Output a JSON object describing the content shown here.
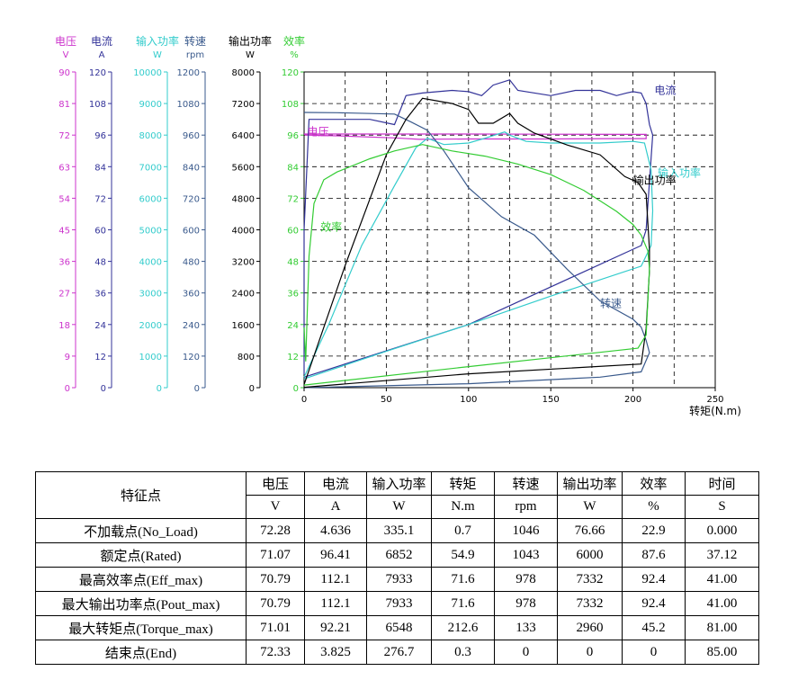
{
  "chart_data": {
    "type": "line",
    "x_axis": {
      "label": "转矩(N.m)",
      "min": 0,
      "max": 250,
      "ticks": [
        0,
        50,
        100,
        150,
        200,
        250
      ]
    },
    "y_axes": [
      {
        "key": "voltage",
        "name": "电压",
        "unit": "V",
        "color": "#cc33cc",
        "min": 0,
        "max": 90,
        "ticks": [
          0,
          9,
          18,
          27,
          36,
          45,
          54,
          63,
          72,
          81,
          90
        ]
      },
      {
        "key": "current",
        "name": "电流",
        "unit": "A",
        "color": "#333399",
        "min": 0,
        "max": 120,
        "ticks": [
          0,
          12,
          24,
          36,
          48,
          60,
          72,
          84,
          96,
          108,
          120
        ]
      },
      {
        "key": "input_power",
        "name": "输入功率",
        "unit": "W",
        "color": "#33cccc",
        "min": 0,
        "max": 10000,
        "ticks": [
          0,
          1000,
          2000,
          3000,
          4000,
          5000,
          6000,
          7000,
          8000,
          9000,
          10000
        ]
      },
      {
        "key": "speed",
        "name": "转速",
        "unit": "rpm",
        "color": "#3a5a8c",
        "min": 0,
        "max": 1200,
        "ticks": [
          0,
          120,
          240,
          360,
          480,
          600,
          720,
          840,
          960,
          1080,
          1200
        ]
      },
      {
        "key": "output_power",
        "name": "输出功率",
        "unit": "W",
        "color": "#000000",
        "min": 0,
        "max": 8000,
        "ticks": [
          0,
          800,
          1600,
          2400,
          3200,
          4000,
          4800,
          5600,
          6400,
          7200,
          8000
        ]
      },
      {
        "key": "efficiency",
        "name": "效率",
        "unit": "%",
        "color": "#33cc33",
        "min": 0,
        "max": 120,
        "ticks": [
          0,
          12,
          24,
          36,
          48,
          60,
          72,
          84,
          96,
          108,
          120
        ]
      }
    ],
    "grid": true,
    "series": [
      {
        "name": "电压",
        "axis": "voltage",
        "color": "#cc33cc",
        "points": [
          [
            0,
            72.3
          ],
          [
            1,
            72.0
          ],
          [
            20,
            71.8
          ],
          [
            55,
            71.2
          ],
          [
            70,
            70.8
          ],
          [
            100,
            70.9
          ],
          [
            150,
            70.9
          ],
          [
            190,
            71.0
          ],
          [
            208,
            71.0
          ],
          [
            208,
            72.2
          ],
          [
            150,
            72.25
          ],
          [
            100,
            72.3
          ],
          [
            50,
            72.3
          ],
          [
            0,
            72.3
          ]
        ]
      },
      {
        "name": "电流",
        "axis": "current",
        "color": "#333399",
        "points": [
          [
            0,
            5
          ],
          [
            0,
            60
          ],
          [
            3,
            102
          ],
          [
            40,
            102
          ],
          [
            55,
            100
          ],
          [
            62,
            111
          ],
          [
            72,
            112
          ],
          [
            90,
            113
          ],
          [
            100,
            112.5
          ],
          [
            108,
            111
          ],
          [
            115,
            115
          ],
          [
            125,
            117
          ],
          [
            130,
            113
          ],
          [
            150,
            111
          ],
          [
            165,
            113
          ],
          [
            180,
            113
          ],
          [
            190,
            111
          ],
          [
            196,
            112
          ],
          [
            200,
            112.5
          ],
          [
            205,
            112
          ],
          [
            208,
            108
          ],
          [
            210,
            100
          ],
          [
            212,
            96
          ],
          [
            208,
            60
          ],
          [
            205,
            54
          ],
          [
            100,
            24
          ],
          [
            0,
            4
          ]
        ]
      },
      {
        "name": "输入功率",
        "axis": "input_power",
        "color": "#33cccc",
        "points": [
          [
            0,
            335
          ],
          [
            15,
            2000
          ],
          [
            35,
            4500
          ],
          [
            55,
            6400
          ],
          [
            68,
            7600
          ],
          [
            75,
            7900
          ],
          [
            85,
            7700
          ],
          [
            100,
            7750
          ],
          [
            110,
            7900
          ],
          [
            122,
            8100
          ],
          [
            125,
            8000
          ],
          [
            135,
            7800
          ],
          [
            150,
            7750
          ],
          [
            165,
            7750
          ],
          [
            180,
            7750
          ],
          [
            200,
            7800
          ],
          [
            207,
            7750
          ],
          [
            211,
            6900
          ],
          [
            212,
            5600
          ],
          [
            211,
            4500
          ],
          [
            205,
            3850
          ],
          [
            150,
            2900
          ],
          [
            100,
            2000
          ],
          [
            50,
            1150
          ],
          [
            0,
            280
          ]
        ]
      },
      {
        "name": "转速",
        "axis": "speed",
        "color": "#3a5a8c",
        "points": [
          [
            0,
            1046
          ],
          [
            20,
            1045
          ],
          [
            55,
            1040
          ],
          [
            65,
            1010
          ],
          [
            75,
            978
          ],
          [
            85,
            900
          ],
          [
            100,
            760
          ],
          [
            120,
            650
          ],
          [
            140,
            580
          ],
          [
            160,
            450
          ],
          [
            180,
            330
          ],
          [
            200,
            260
          ],
          [
            205,
            230
          ],
          [
            208,
            180
          ],
          [
            210,
            133
          ],
          [
            205,
            60
          ],
          [
            180,
            40
          ],
          [
            100,
            15
          ],
          [
            0,
            0
          ]
        ]
      },
      {
        "name": "输出功率",
        "axis": "output_power",
        "color": "#000000",
        "points": [
          [
            0,
            80
          ],
          [
            25,
            3100
          ],
          [
            50,
            5900
          ],
          [
            62,
            6800
          ],
          [
            72,
            7332
          ],
          [
            90,
            7200
          ],
          [
            100,
            7050
          ],
          [
            106,
            6700
          ],
          [
            115,
            6700
          ],
          [
            125,
            6950
          ],
          [
            130,
            6700
          ],
          [
            140,
            6450
          ],
          [
            160,
            6150
          ],
          [
            180,
            5900
          ],
          [
            195,
            5350
          ],
          [
            203,
            5200
          ],
          [
            208,
            4900
          ],
          [
            210,
            3500
          ],
          [
            210,
            2960
          ],
          [
            208,
            1500
          ],
          [
            205,
            600
          ],
          [
            100,
            350
          ],
          [
            0,
            10
          ]
        ]
      },
      {
        "name": "效率",
        "axis": "efficiency",
        "color": "#33cc33",
        "points": [
          [
            0,
            22.9
          ],
          [
            1,
            10
          ],
          [
            3,
            50
          ],
          [
            6,
            70
          ],
          [
            12,
            79
          ],
          [
            20,
            82
          ],
          [
            40,
            87
          ],
          [
            55,
            90
          ],
          [
            72,
            92.4
          ],
          [
            90,
            90
          ],
          [
            110,
            88
          ],
          [
            130,
            85
          ],
          [
            150,
            81
          ],
          [
            170,
            75
          ],
          [
            190,
            67
          ],
          [
            200,
            62
          ],
          [
            205,
            58
          ],
          [
            209,
            52
          ],
          [
            210,
            45.2
          ],
          [
            208,
            20
          ],
          [
            203,
            15
          ],
          [
            100,
            8
          ],
          [
            0,
            1
          ]
        ]
      }
    ],
    "annotations": [
      {
        "text": "电流",
        "color": "#333399",
        "x": 213,
        "y_axis": "current",
        "y": 113
      },
      {
        "text": "电压",
        "color": "#cc33cc",
        "x": 2,
        "y_axis": "voltage",
        "y": 73
      },
      {
        "text": "输入功率",
        "color": "#33cccc",
        "x": 215,
        "y_axis": "input_power",
        "y": 6800
      },
      {
        "text": "输出功率",
        "color": "#000000",
        "x": 200,
        "y_axis": "output_power",
        "y": 5250
      },
      {
        "text": "效率",
        "color": "#33cc33",
        "x": 10,
        "y_axis": "efficiency",
        "y": 61
      },
      {
        "text": "转速",
        "color": "#3a5a8c",
        "x": 180,
        "y_axis": "speed",
        "y": 320
      }
    ]
  },
  "table": {
    "header_top": [
      "特征点",
      "电压",
      "电流",
      "输入功率",
      "转矩",
      "转速",
      "输出功率",
      "效率",
      "时间"
    ],
    "header_units": [
      "V",
      "A",
      "W",
      "N.m",
      "rpm",
      "W",
      "%",
      "S"
    ],
    "rows": [
      [
        "不加载点(No_Load)",
        "72.28",
        "4.636",
        "335.1",
        "0.7",
        "1046",
        "76.66",
        "22.9",
        "0.000"
      ],
      [
        "额定点(Rated)",
        "71.07",
        "96.41",
        "6852",
        "54.9",
        "1043",
        "6000",
        "87.6",
        "37.12"
      ],
      [
        "最高效率点(Eff_max)",
        "70.79",
        "112.1",
        "7933",
        "71.6",
        "978",
        "7332",
        "92.4",
        "41.00"
      ],
      [
        "最大输出功率点(Pout_max)",
        "70.79",
        "112.1",
        "7933",
        "71.6",
        "978",
        "7332",
        "92.4",
        "41.00"
      ],
      [
        "最大转矩点(Torque_max)",
        "71.01",
        "92.21",
        "6548",
        "212.6",
        "133",
        "2960",
        "45.2",
        "81.00"
      ],
      [
        "结束点(End)",
        "72.33",
        "3.825",
        "276.7",
        "0.3",
        "0",
        "0",
        "0",
        "85.00"
      ]
    ]
  }
}
